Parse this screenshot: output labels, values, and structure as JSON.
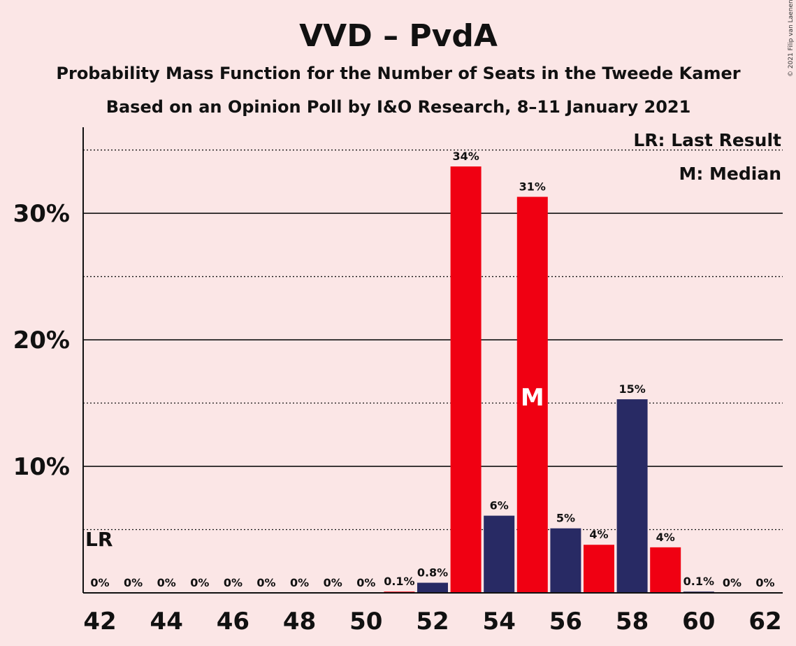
{
  "chart_data": {
    "type": "bar",
    "title": "VVD – PvdA",
    "subtitle1": "Probability Mass Function for the Number of Seats in the Tweede Kamer",
    "subtitle2": "Based on an Opinion Poll by I&O Research, 8–11 January 2021",
    "copyright": "© 2021 Filip van Laenen",
    "x": [
      42,
      43,
      44,
      45,
      46,
      47,
      48,
      49,
      50,
      51,
      52,
      53,
      54,
      55,
      56,
      57,
      58,
      59,
      60,
      61,
      62
    ],
    "values": [
      0,
      0,
      0,
      0,
      0,
      0,
      0,
      0,
      0,
      0.1,
      0.8,
      33.7,
      6.1,
      31.3,
      5.1,
      3.8,
      15.3,
      3.6,
      0.1,
      0,
      0
    ],
    "labels": [
      "0%",
      "0%",
      "0%",
      "0%",
      "0%",
      "0%",
      "0%",
      "0%",
      "0%",
      "0.1%",
      "0.8%",
      "34%",
      "6%",
      "31%",
      "5%",
      "4%",
      "15%",
      "4%",
      "0.1%",
      "0%",
      "0%"
    ],
    "xticks": [
      42,
      44,
      46,
      48,
      50,
      52,
      54,
      56,
      58,
      60,
      62
    ],
    "yticks": [
      10,
      20,
      30
    ],
    "ytick_labels": [
      "10%",
      "20%",
      "30%"
    ],
    "ylim": [
      0,
      36.8
    ],
    "last_result": 42,
    "last_result_label": "LR",
    "median": 55,
    "median_label": "M",
    "legend": [
      "LR: Last Result",
      "M: Median"
    ],
    "legend_position": "top-right",
    "colors": {
      "red": "#f00012",
      "navy": "#282a64",
      "background": "#fbe6e6"
    },
    "grid": "solid lines at 10% steps, dotted lines at 5% midpoints"
  }
}
